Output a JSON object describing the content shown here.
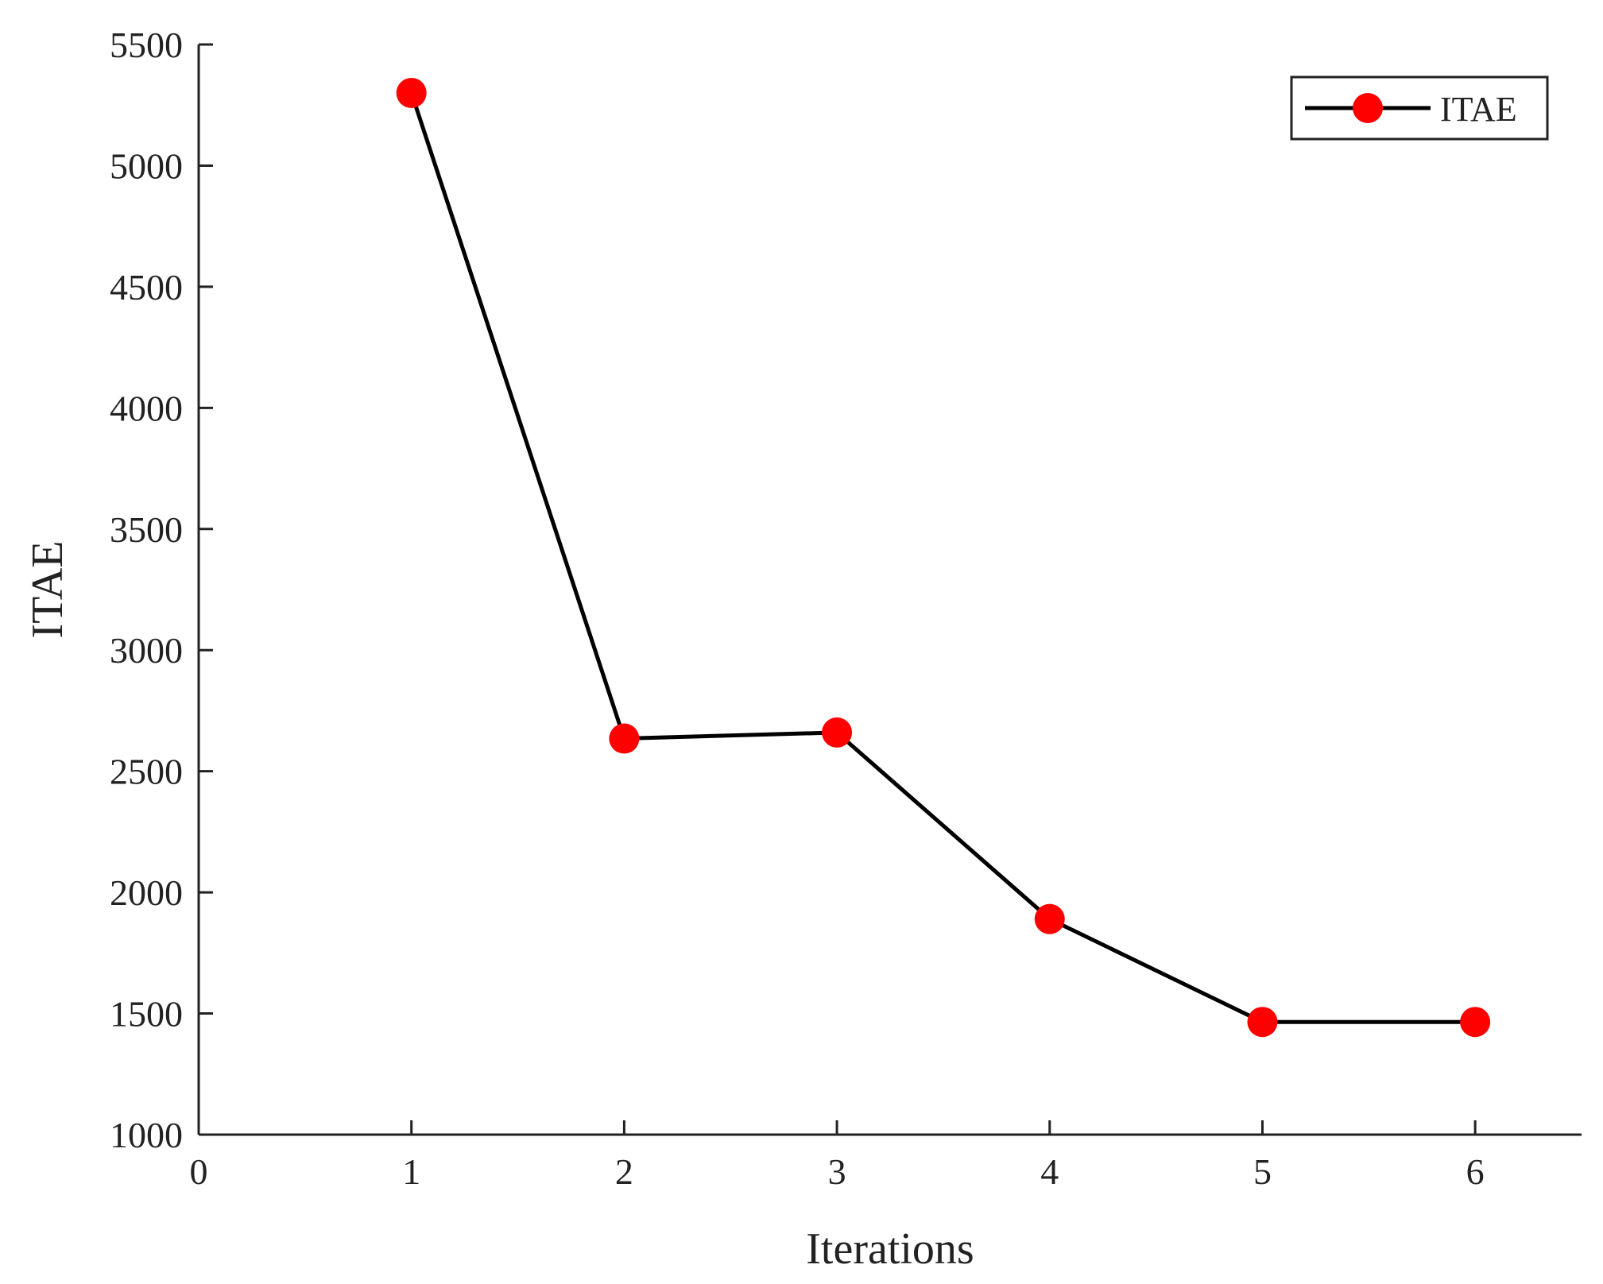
{
  "chart_data": {
    "type": "line",
    "xlabel": "Iterations",
    "ylabel": "ITAE",
    "xlim": [
      0,
      6.5
    ],
    "ylim": [
      1000,
      5500
    ],
    "x_ticks": [
      "0",
      "1",
      "2",
      "3",
      "4",
      "5",
      "6"
    ],
    "y_ticks": [
      "1000",
      "1500",
      "2000",
      "2500",
      "3000",
      "3500",
      "4000",
      "4500",
      "5000",
      "5500"
    ],
    "grid": false,
    "legend_position": "top-right",
    "series": [
      {
        "name": "ITAE",
        "x": [
          1,
          2,
          3,
          4,
          5,
          6
        ],
        "y": [
          5300,
          2635,
          2660,
          1890,
          1465,
          1465
        ],
        "line_color": "#000000",
        "marker_color": "#ff0000"
      }
    ]
  }
}
